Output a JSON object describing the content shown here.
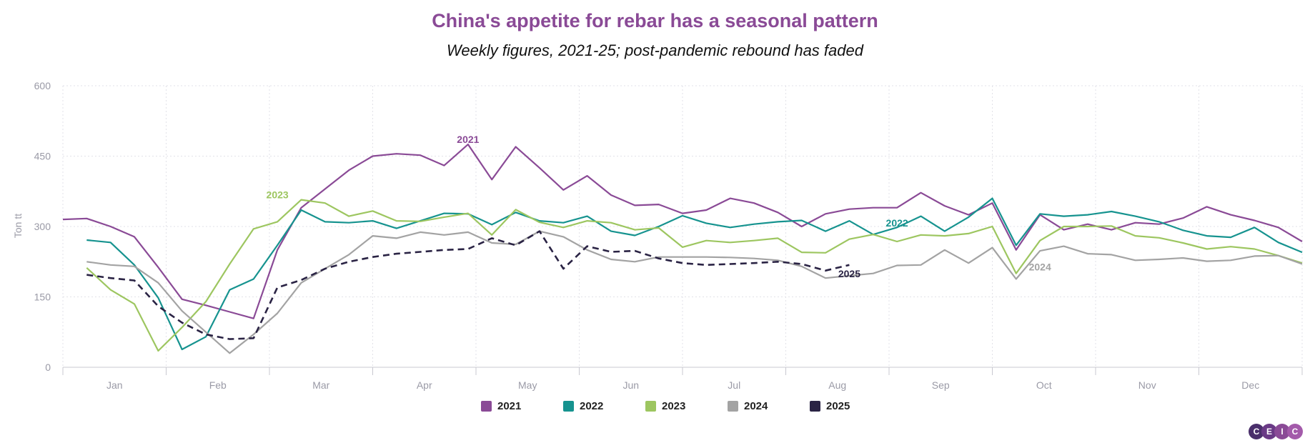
{
  "chart_data": {
    "type": "line",
    "title": "China's appetite for rebar has a seasonal pattern",
    "subtitle": "Weekly figures, 2021-25; post-pandemic rebound has faded",
    "ylabel": "Ton tt",
    "xlabel": "",
    "ylim": [
      0,
      600
    ],
    "yticks": [
      0,
      150,
      300,
      450,
      600
    ],
    "xlim": [
      1,
      53
    ],
    "months": [
      "Jan",
      "Feb",
      "Mar",
      "Apr",
      "May",
      "Jun",
      "Jul",
      "Aug",
      "Sep",
      "Oct",
      "Nov",
      "Dec"
    ],
    "series": [
      {
        "name": "2021",
        "color": "#8a4a96",
        "dash": false,
        "start_week": 1,
        "values": [
          315,
          317,
          300,
          278,
          213,
          145,
          132,
          118,
          104,
          250,
          340,
          380,
          420,
          450,
          455,
          452,
          430,
          475,
          400,
          470,
          425,
          378,
          408,
          367,
          345,
          347,
          328,
          335,
          360,
          350,
          330,
          300,
          327,
          337,
          340,
          340,
          372,
          344,
          325,
          350,
          250,
          325,
          293,
          305,
          293,
          308,
          305,
          318,
          342,
          325,
          313,
          298,
          268
        ],
        "label": "2021"
      },
      {
        "name": "2022",
        "color": "#16938f",
        "dash": false,
        "start_week": 2,
        "values": [
          271,
          266,
          218,
          148,
          38,
          65,
          165,
          188,
          260,
          335,
          310,
          308,
          312,
          296,
          312,
          328,
          327,
          304,
          330,
          312,
          308,
          322,
          290,
          281,
          300,
          323,
          307,
          298,
          305,
          310,
          313,
          290,
          312,
          283,
          298,
          322,
          290,
          320,
          360,
          260,
          327,
          322,
          325,
          332,
          322,
          310,
          292,
          280,
          277,
          298,
          266,
          245
        ],
        "label": "2022"
      },
      {
        "name": "2023",
        "color": "#9dc660",
        "dash": false,
        "start_week": 2,
        "values": [
          212,
          165,
          135,
          35,
          85,
          140,
          220,
          295,
          310,
          357,
          350,
          322,
          333,
          312,
          311,
          320,
          328,
          282,
          336,
          309,
          298,
          312,
          308,
          293,
          297,
          256,
          270,
          266,
          270,
          275,
          245,
          244,
          273,
          283,
          268,
          282,
          280,
          285,
          300,
          200,
          270,
          300,
          300,
          301,
          280,
          276,
          265,
          252,
          257,
          252,
          238,
          222
        ],
        "label": "2023"
      },
      {
        "name": "2024",
        "color": "#a3a3a3",
        "dash": false,
        "start_week": 2,
        "values": [
          225,
          218,
          215,
          180,
          120,
          75,
          30,
          70,
          115,
          180,
          210,
          240,
          280,
          275,
          288,
          282,
          288,
          265,
          262,
          290,
          278,
          250,
          230,
          225,
          235,
          235,
          235,
          234,
          232,
          228,
          215,
          190,
          195,
          200,
          217,
          218,
          250,
          222,
          255,
          188,
          248,
          258,
          242,
          240,
          228,
          230,
          233,
          226,
          228,
          237,
          238,
          220
        ],
        "label": "2024"
      },
      {
        "name": "2025",
        "color": "#2a2344",
        "dash": true,
        "start_week": 2,
        "values": [
          197,
          190,
          185,
          130,
          95,
          70,
          60,
          62,
          170,
          186,
          210,
          225,
          235,
          242,
          246,
          250,
          252,
          275,
          260,
          290,
          210,
          258,
          246,
          248,
          232,
          222,
          218,
          220,
          222,
          225,
          220,
          206,
          218
        ],
        "label": "2025"
      }
    ],
    "legend": [
      "2021",
      "2022",
      "2023",
      "2024",
      "2025"
    ]
  },
  "brand": {
    "logo_letters": [
      "C",
      "E",
      "I",
      "C"
    ]
  }
}
